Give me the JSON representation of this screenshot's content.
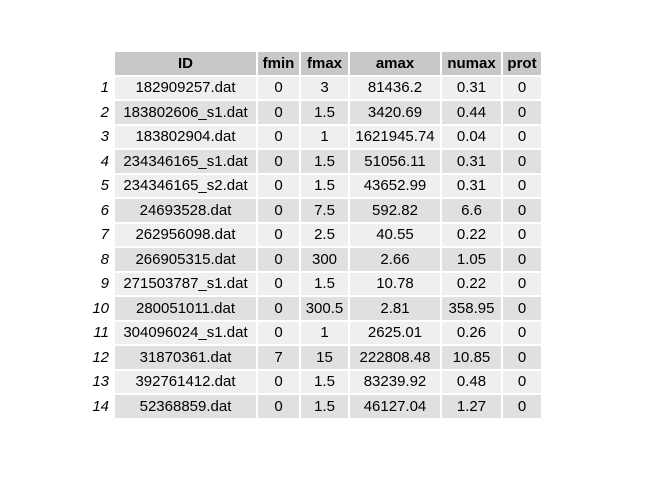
{
  "table": {
    "columns": [
      "ID",
      "fmin",
      "fmax",
      "amax",
      "numax",
      "prot"
    ],
    "rows": [
      {
        "n": "1",
        "cells": [
          "182909257.dat",
          "0",
          "3",
          "81436.2",
          "0.31",
          "0"
        ]
      },
      {
        "n": "2",
        "cells": [
          "183802606_s1.dat",
          "0",
          "1.5",
          "3420.69",
          "0.44",
          "0"
        ]
      },
      {
        "n": "3",
        "cells": [
          "183802904.dat",
          "0",
          "1",
          "1621945.74",
          "0.04",
          "0"
        ]
      },
      {
        "n": "4",
        "cells": [
          "234346165_s1.dat",
          "0",
          "1.5",
          "51056.11",
          "0.31",
          "0"
        ]
      },
      {
        "n": "5",
        "cells": [
          "234346165_s2.dat",
          "0",
          "1.5",
          "43652.99",
          "0.31",
          "0"
        ]
      },
      {
        "n": "6",
        "cells": [
          "24693528.dat",
          "0",
          "7.5",
          "592.82",
          "6.6",
          "0"
        ]
      },
      {
        "n": "7",
        "cells": [
          "262956098.dat",
          "0",
          "2.5",
          "40.55",
          "0.22",
          "0"
        ]
      },
      {
        "n": "8",
        "cells": [
          "266905315.dat",
          "0",
          "300",
          "2.66",
          "1.05",
          "0"
        ]
      },
      {
        "n": "9",
        "cells": [
          "271503787_s1.dat",
          "0",
          "1.5",
          "10.78",
          "0.22",
          "0"
        ]
      },
      {
        "n": "10",
        "cells": [
          "280051011.dat",
          "0",
          "300.5",
          "2.81",
          "358.95",
          "0"
        ]
      },
      {
        "n": "11",
        "cells": [
          "304096024_s1.dat",
          "0",
          "1",
          "2625.01",
          "0.26",
          "0"
        ]
      },
      {
        "n": "12",
        "cells": [
          "31870361.dat",
          "7",
          "15",
          "222808.48",
          "10.85",
          "0"
        ]
      },
      {
        "n": "13",
        "cells": [
          "392761412.dat",
          "0",
          "1.5",
          "83239.92",
          "0.48",
          "0"
        ]
      },
      {
        "n": "14",
        "cells": [
          "52368859.dat",
          "0",
          "1.5",
          "46127.04",
          "1.27",
          "0"
        ]
      }
    ]
  }
}
